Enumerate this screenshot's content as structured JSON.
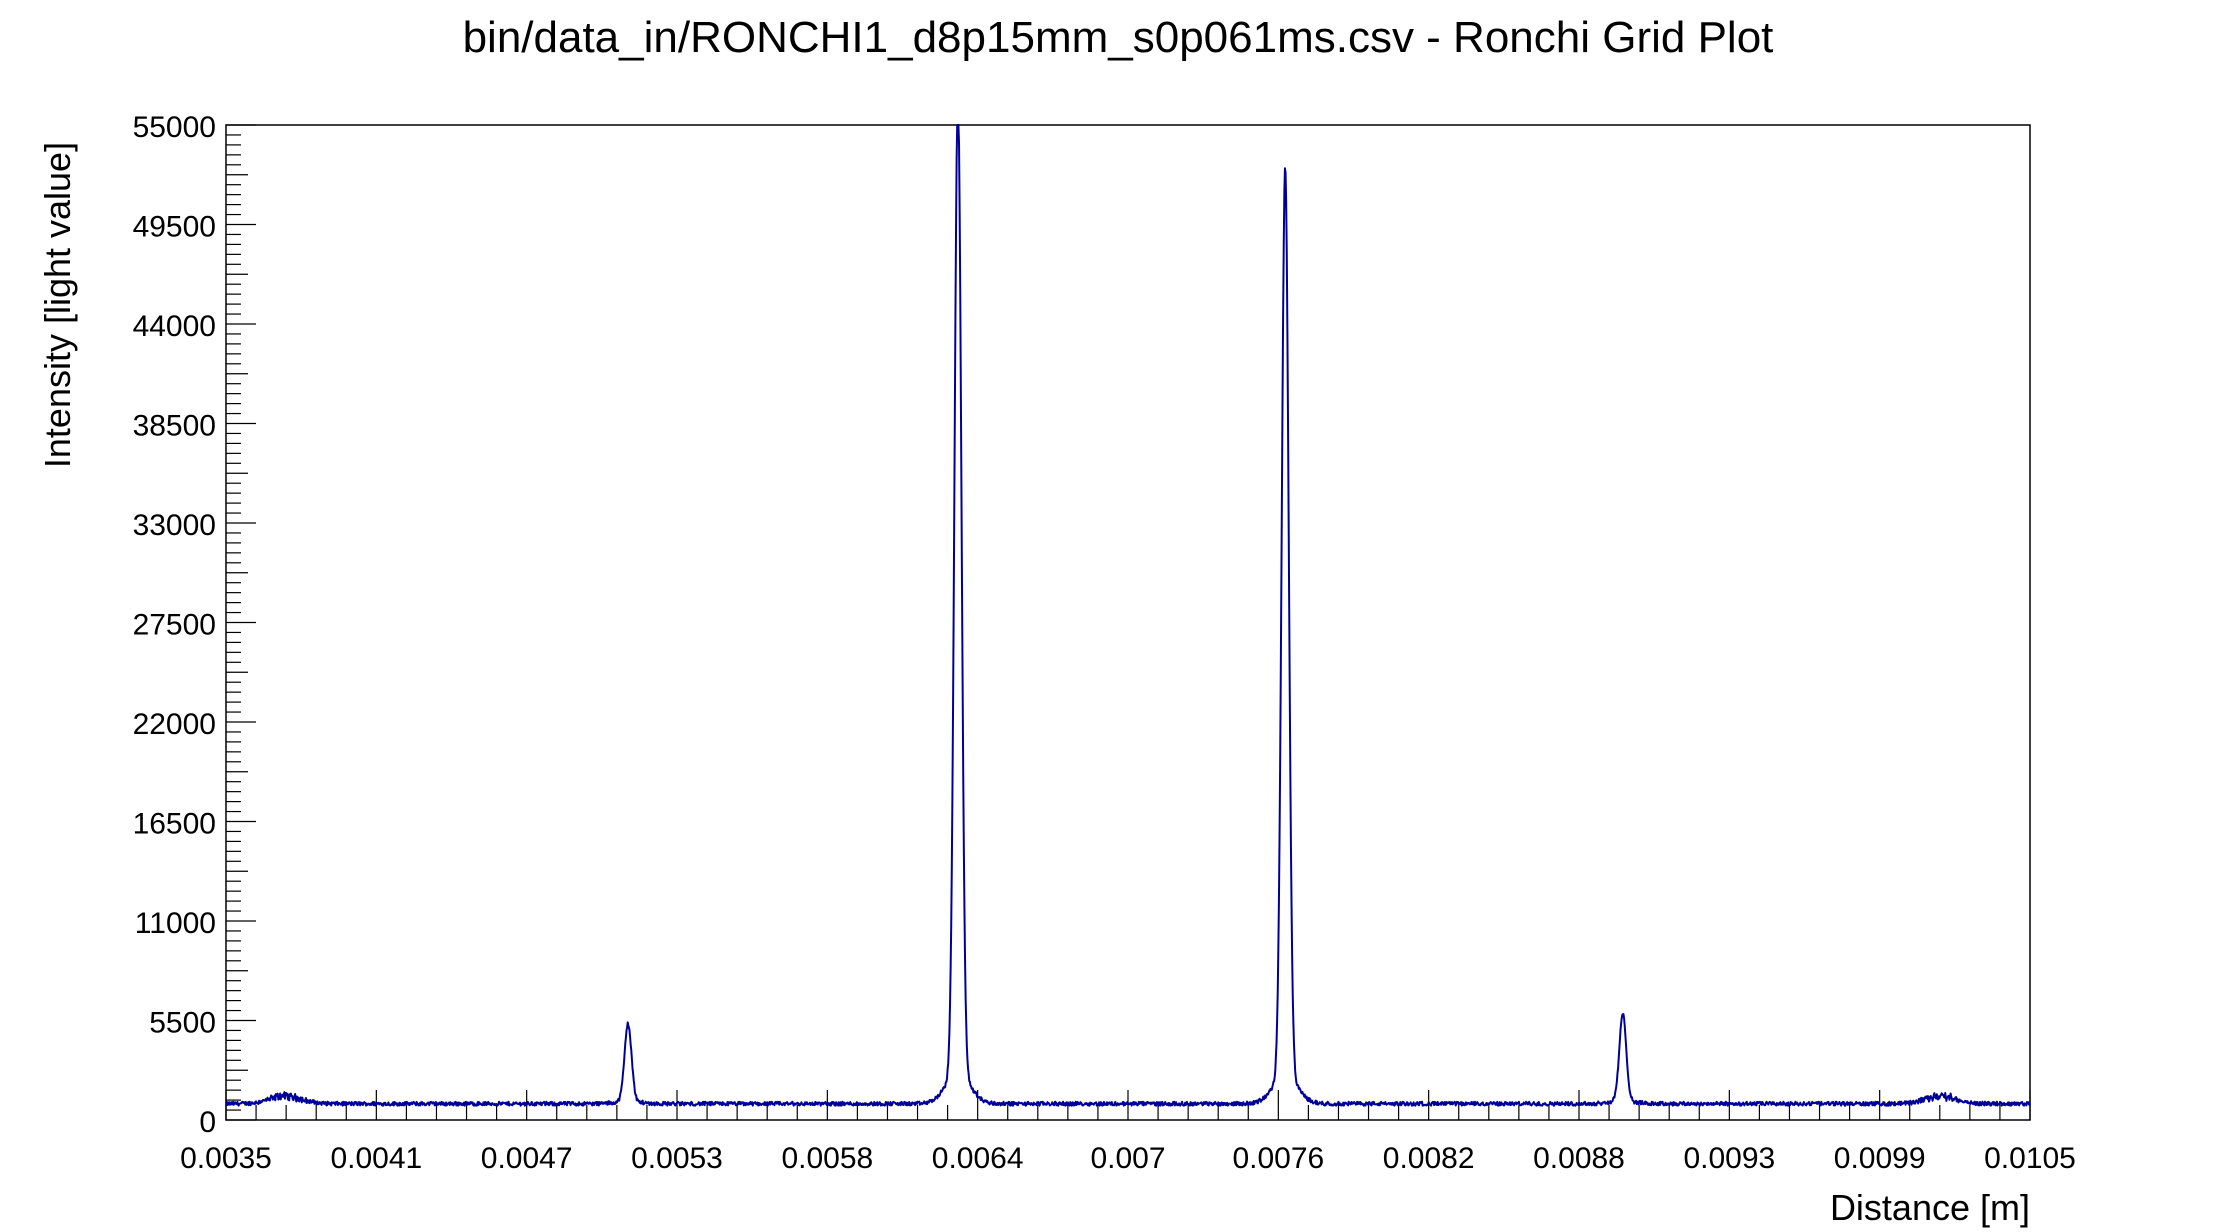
{
  "chart_data": {
    "type": "line",
    "title": "bin/data_in/RONCHI1_d8p15mm_s0p061ms.csv - Ronchi Grid Plot",
    "xlabel": "Distance [m]",
    "ylabel": "Intensity [light value]",
    "xlim": [
      0.0035,
      0.0105
    ],
    "ylim": [
      0,
      55000
    ],
    "x_tick_labels": [
      "0.0035",
      "0.0041",
      "0.0047",
      "0.0053",
      "0.0058",
      "0.0064",
      "0.007",
      "0.0076",
      "0.0082",
      "0.0088",
      "0.0093",
      "0.0099",
      "0.0105"
    ],
    "y_tick_values": [
      0,
      5500,
      11000,
      16500,
      22000,
      27500,
      33000,
      38500,
      44000,
      49500,
      55000
    ],
    "y_tick_labels": [
      "0",
      "5500",
      "11000",
      "16500",
      "22000",
      "27500",
      "33000",
      "38500",
      "44000",
      "49500",
      "55000"
    ],
    "grid": false,
    "series": [
      {
        "color": "#000099",
        "baseline": 900,
        "peaks": [
          {
            "x": 0.00506,
            "height": 5200
          },
          {
            "x": 0.00634,
            "height": 55000
          },
          {
            "x": 0.00761,
            "height": 51200
          },
          {
            "x": 0.00892,
            "height": 5700
          }
        ],
        "noise_bumps": [
          {
            "x": 0.00373,
            "height": 1500
          },
          {
            "x": 0.01015,
            "height": 1500
          }
        ]
      }
    ]
  }
}
